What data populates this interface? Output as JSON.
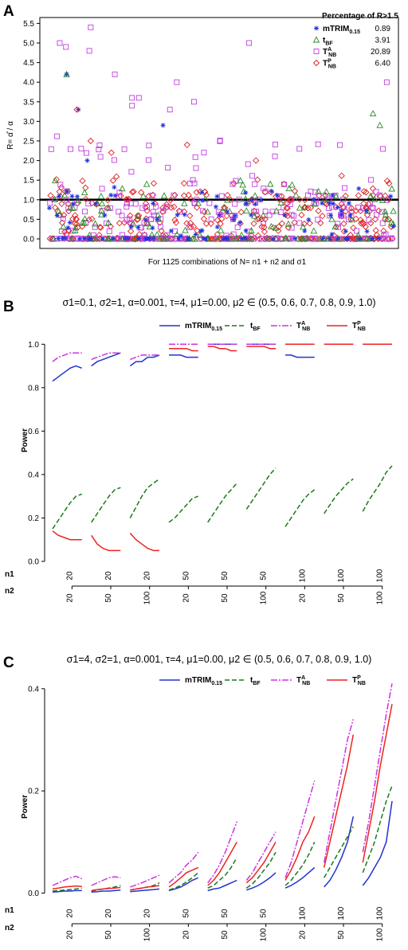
{
  "panels": [
    {
      "label": "A",
      "chart_data": {
        "type": "scatter",
        "ylabel": "R= α̂ / α",
        "xlabel": "For 1125 combinations of N= n1 + n2 and σ1",
        "ylim": [
          0,
          5.6
        ],
        "yticks": [
          "0.0",
          "0.5",
          "1.0",
          "1.5",
          "2.0",
          "2.5",
          "3.0",
          "3.5",
          "4.0",
          "4.5",
          "5.0",
          "5.5"
        ],
        "reference_line_y": 1.0,
        "legend_title": "Percentage of R>1.5",
        "legend_position": "top-right",
        "series": [
          {
            "name": "mTRIM0.15",
            "base": "mTRIM",
            "sub": "0.15",
            "sup": "",
            "marker": "asterisk",
            "color": "#2233dd",
            "percent": "0.89"
          },
          {
            "name": "tBF",
            "base": "t",
            "sub": "BF",
            "sup": "",
            "marker": "triangle",
            "color": "#2a8a2a",
            "percent": "3.91"
          },
          {
            "name": "TANB",
            "base": "T",
            "sub": "NB",
            "sup": "A",
            "marker": "square",
            "color": "#c040e0",
            "percent": "20.89"
          },
          {
            "name": "TPNB",
            "base": "T",
            "sub": "NB",
            "sup": "P",
            "marker": "diamond",
            "color": "#e02020",
            "percent": "6.40"
          }
        ],
        "notable_points": {
          "TANB": [
            [
              15,
              5.0
            ],
            [
              60,
              5.4
            ],
            [
              95,
              4.2
            ],
            [
              120,
              3.6
            ],
            [
              185,
              4.0
            ],
            [
              210,
              3.5
            ],
            [
              290,
              5.0
            ],
            [
              490,
              4.0
            ],
            [
              24,
              4.9
            ],
            [
              58,
              4.8
            ],
            [
              130,
              3.6
            ],
            [
              175,
              3.3
            ],
            [
              120,
              3.4
            ]
          ],
          "mTRIM0.15": [
            [
              25,
              4.2
            ],
            [
              42,
              3.3
            ],
            [
              165,
              2.9
            ],
            [
              55,
              2.0
            ]
          ],
          "tBF": [
            [
              470,
              3.2
            ],
            [
              480,
              2.9
            ],
            [
              25,
              4.2
            ]
          ],
          "TPNB": [
            [
              40,
              3.3
            ],
            [
              60,
              2.5
            ],
            [
              90,
              2.2
            ],
            [
              200,
              2.4
            ],
            [
              300,
              2.0
            ]
          ]
        }
      }
    },
    {
      "label": "B",
      "title": "σ1=0.1,   σ2=1,   α=0.001,   τ=4,   μ1=0.00,   μ2 ∈ (0.5, 0.6, 0.7, 0.8, 0.9, 1.0)",
      "chart_data": {
        "type": "line",
        "ylabel": "Power",
        "ylim": [
          0,
          1.1
        ],
        "yticks": [
          "0.0",
          "0.2",
          "0.4",
          "0.6",
          "0.8",
          "1.0"
        ],
        "x_groups_n1": [
          "20",
          "20",
          "20",
          "50",
          "50",
          "50",
          "100",
          "100",
          "100"
        ],
        "x_groups_n2": [
          "20",
          "50",
          "100",
          "20",
          "50",
          "100",
          "20",
          "50",
          "100"
        ],
        "row_labels": [
          "n1",
          "n2"
        ],
        "mu2": [
          0.5,
          0.6,
          0.7,
          0.8,
          0.9,
          1.0
        ],
        "series": [
          {
            "name": "mTRIM0.15",
            "base": "mTRIM",
            "sub": "0.15",
            "sup": "",
            "color": "#2233cc",
            "dash": "",
            "groups": [
              [
                0.83,
                0.85,
                0.87,
                0.89,
                0.9,
                0.89
              ],
              [
                0.9,
                0.92,
                0.93,
                0.94,
                0.95,
                0.96
              ],
              [
                0.9,
                0.92,
                0.92,
                0.94,
                0.94,
                0.95
              ],
              [
                0.95,
                0.95,
                0.95,
                0.94,
                0.94,
                0.94
              ],
              [
                1.0,
                1.0,
                1.0,
                1.0,
                1.0,
                1.0
              ],
              [
                1.0,
                1.0,
                1.0,
                1.0,
                1.0,
                1.0
              ],
              [
                0.95,
                0.95,
                0.94,
                0.94,
                0.94,
                0.94
              ],
              [
                1.0,
                1.0,
                1.0,
                1.0,
                1.0,
                1.0
              ],
              [
                1.0,
                1.0,
                1.0,
                1.0,
                1.0,
                1.0
              ]
            ]
          },
          {
            "name": "tBF",
            "base": "t",
            "sub": "BF",
            "sup": "",
            "color": "#1a7a1a",
            "dash": "6,3",
            "groups": [
              [
                0.15,
                0.19,
                0.23,
                0.27,
                0.3,
                0.31
              ],
              [
                0.18,
                0.22,
                0.26,
                0.3,
                0.33,
                0.34
              ],
              [
                0.2,
                0.25,
                0.3,
                0.34,
                0.36,
                0.38
              ],
              [
                0.18,
                0.2,
                0.23,
                0.26,
                0.29,
                0.3
              ],
              [
                0.18,
                0.22,
                0.26,
                0.3,
                0.33,
                0.36
              ],
              [
                0.24,
                0.28,
                0.32,
                0.36,
                0.4,
                0.43
              ],
              [
                0.16,
                0.2,
                0.24,
                0.28,
                0.31,
                0.33
              ],
              [
                0.22,
                0.26,
                0.3,
                0.33,
                0.36,
                0.38
              ],
              [
                0.23,
                0.28,
                0.32,
                0.36,
                0.41,
                0.44
              ]
            ]
          },
          {
            "name": "TANB",
            "base": "T",
            "sub": "NB",
            "sup": "A",
            "color": "#cc33dd",
            "dash": "8,2,2,2",
            "groups": [
              [
                0.92,
                0.94,
                0.95,
                0.96,
                0.96,
                0.96
              ],
              [
                0.93,
                0.94,
                0.95,
                0.96,
                0.96,
                0.96
              ],
              [
                0.93,
                0.94,
                0.95,
                0.95,
                0.95,
                0.95
              ],
              [
                1.0,
                1.0,
                1.0,
                1.0,
                1.0,
                1.0
              ],
              [
                1.0,
                1.0,
                1.0,
                1.0,
                1.0,
                1.0
              ],
              [
                1.0,
                1.0,
                1.0,
                1.0,
                1.0,
                1.0
              ],
              [
                1.0,
                1.0,
                1.0,
                1.0,
                1.0,
                1.0
              ],
              [
                1.0,
                1.0,
                1.0,
                1.0,
                1.0,
                1.0
              ],
              [
                1.0,
                1.0,
                1.0,
                1.0,
                1.0,
                1.0
              ]
            ]
          },
          {
            "name": "TPNB",
            "base": "T",
            "sub": "NB",
            "sup": "P",
            "color": "#ee2222",
            "dash": "",
            "groups": [
              [
                0.14,
                0.12,
                0.11,
                0.1,
                0.1,
                0.1
              ],
              [
                0.12,
                0.08,
                0.06,
                0.05,
                0.05,
                0.05
              ],
              [
                0.13,
                0.1,
                0.08,
                0.06,
                0.05,
                0.05
              ],
              [
                0.98,
                0.98,
                0.98,
                0.98,
                0.97,
                0.97
              ],
              [
                0.99,
                0.99,
                0.98,
                0.98,
                0.97,
                0.97
              ],
              [
                0.99,
                0.99,
                0.99,
                0.99,
                0.98,
                0.98
              ],
              [
                1.0,
                1.0,
                1.0,
                1.0,
                1.0,
                1.0
              ],
              [
                1.0,
                1.0,
                1.0,
                1.0,
                1.0,
                1.0
              ],
              [
                1.0,
                1.0,
                1.0,
                1.0,
                1.0,
                1.0
              ]
            ]
          }
        ]
      }
    },
    {
      "label": "C",
      "title": "σ1=4,   σ2=1,   α=0.001,   τ=4,   μ1=0.00,   μ2 ∈ (0.5, 0.6, 0.7, 0.8, 0.9, 1.0)",
      "chart_data": {
        "type": "line",
        "ylabel": "Power",
        "ylim": [
          -0.01,
          0.42
        ],
        "yticks": [
          "0.0",
          "0.2",
          "0.4"
        ],
        "x_groups_n1": [
          "20",
          "20",
          "20",
          "50",
          "50",
          "50",
          "100",
          "100",
          "100"
        ],
        "x_groups_n2": [
          "20",
          "50",
          "100",
          "20",
          "50",
          "100",
          "20",
          "50",
          "100"
        ],
        "row_labels": [
          "n1",
          "n2"
        ],
        "mu2": [
          0.5,
          0.6,
          0.7,
          0.8,
          0.9,
          1.0
        ],
        "series": [
          {
            "name": "mTRIM0.15",
            "base": "mTRIM",
            "sub": "0.15",
            "sup": "",
            "color": "#2233cc",
            "dash": "",
            "groups": [
              [
                0.002,
                0.003,
                0.004,
                0.004,
                0.005,
                0.005
              ],
              [
                0.002,
                0.003,
                0.004,
                0.004,
                0.005,
                0.006
              ],
              [
                0.003,
                0.004,
                0.005,
                0.006,
                0.007,
                0.008
              ],
              [
                0.005,
                0.008,
                0.012,
                0.018,
                0.025,
                0.03
              ],
              [
                0.005,
                0.008,
                0.01,
                0.015,
                0.02,
                0.025
              ],
              [
                0.006,
                0.01,
                0.015,
                0.022,
                0.03,
                0.04
              ],
              [
                0.01,
                0.015,
                0.022,
                0.03,
                0.04,
                0.05
              ],
              [
                0.012,
                0.025,
                0.045,
                0.07,
                0.1,
                0.15
              ],
              [
                0.015,
                0.03,
                0.05,
                0.07,
                0.1,
                0.18
              ]
            ]
          },
          {
            "name": "tBF",
            "base": "t",
            "sub": "BF",
            "sup": "",
            "color": "#1a7a1a",
            "dash": "6,3",
            "groups": [
              [
                0.004,
                0.005,
                0.006,
                0.007,
                0.008,
                0.01
              ],
              [
                0.004,
                0.006,
                0.008,
                0.01,
                0.012,
                0.015
              ],
              [
                0.006,
                0.008,
                0.01,
                0.012,
                0.015,
                0.02
              ],
              [
                0.006,
                0.01,
                0.015,
                0.022,
                0.03,
                0.04
              ],
              [
                0.01,
                0.015,
                0.025,
                0.035,
                0.05,
                0.07
              ],
              [
                0.01,
                0.018,
                0.03,
                0.045,
                0.06,
                0.08
              ],
              [
                0.015,
                0.025,
                0.04,
                0.055,
                0.075,
                0.1
              ],
              [
                0.03,
                0.05,
                0.07,
                0.09,
                0.11,
                0.13
              ],
              [
                0.04,
                0.07,
                0.1,
                0.14,
                0.18,
                0.21
              ]
            ]
          },
          {
            "name": "TANB",
            "base": "T",
            "sub": "NB",
            "sup": "A",
            "color": "#cc33dd",
            "dash": "8,2,2,2",
            "groups": [
              [
                0.015,
                0.02,
                0.025,
                0.03,
                0.033,
                0.028
              ],
              [
                0.015,
                0.02,
                0.025,
                0.03,
                0.032,
                0.03
              ],
              [
                0.012,
                0.016,
                0.02,
                0.025,
                0.03,
                0.035
              ],
              [
                0.02,
                0.03,
                0.04,
                0.055,
                0.065,
                0.08
              ],
              [
                0.02,
                0.035,
                0.055,
                0.08,
                0.11,
                0.14
              ],
              [
                0.025,
                0.04,
                0.06,
                0.08,
                0.1,
                0.12
              ],
              [
                0.03,
                0.06,
                0.1,
                0.14,
                0.18,
                0.22
              ],
              [
                0.06,
                0.12,
                0.18,
                0.24,
                0.3,
                0.34
              ],
              [
                0.08,
                0.14,
                0.21,
                0.28,
                0.35,
                0.41
              ]
            ]
          },
          {
            "name": "TPNB",
            "base": "T",
            "sub": "NB",
            "sup": "P",
            "color": "#ee2222",
            "dash": "",
            "groups": [
              [
                0.008,
                0.01,
                0.012,
                0.013,
                0.014,
                0.013
              ],
              [
                0.005,
                0.007,
                0.008,
                0.009,
                0.01,
                0.011
              ],
              [
                0.006,
                0.008,
                0.01,
                0.012,
                0.013,
                0.015
              ],
              [
                0.012,
                0.02,
                0.03,
                0.04,
                0.045,
                0.05
              ],
              [
                0.015,
                0.025,
                0.04,
                0.06,
                0.08,
                0.1
              ],
              [
                0.02,
                0.03,
                0.045,
                0.06,
                0.08,
                0.1
              ],
              [
                0.025,
                0.045,
                0.07,
                0.1,
                0.12,
                0.15
              ],
              [
                0.05,
                0.1,
                0.15,
                0.2,
                0.25,
                0.31
              ],
              [
                0.06,
                0.12,
                0.18,
                0.25,
                0.31,
                0.37
              ]
            ]
          }
        ]
      }
    }
  ]
}
